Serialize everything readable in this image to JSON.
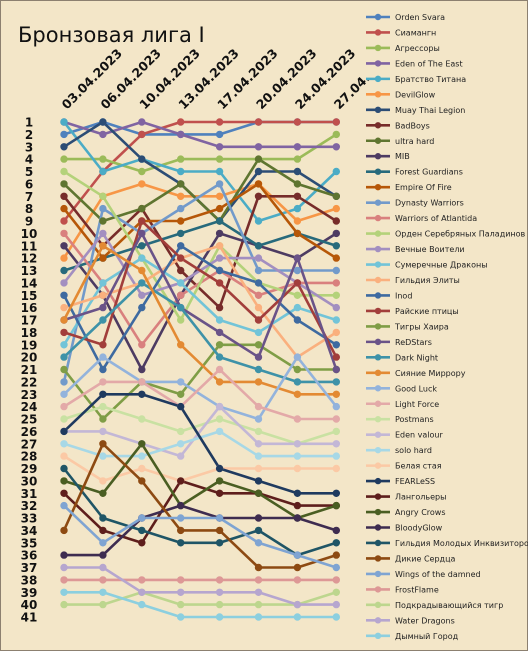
{
  "chart_data": {
    "type": "line",
    "title": "Бронзовая лига I",
    "x": [
      "03.04.2023",
      "06.04.2023",
      "10.04.2023",
      "13.04.2023",
      "17.04.2023",
      "20.04.2023",
      "24.04.2023",
      "27.04."
    ],
    "y_ticks": [
      "1",
      "2",
      "3",
      "4",
      "5",
      "6",
      "7",
      "8",
      "9",
      "10",
      "11",
      "12",
      "13",
      "14",
      "15",
      "16",
      "17",
      "18",
      "19",
      "20",
      "21",
      "22",
      "23",
      "24",
      "25",
      "26",
      "27",
      "28",
      "29",
      "30",
      "31",
      "32",
      "33",
      "34",
      "35",
      "36",
      "37",
      "38",
      "39",
      "40",
      "41"
    ],
    "ylim": [
      1,
      41
    ],
    "y_inverted": true,
    "legend_position": "right",
    "series": [
      {
        "name": "Orden Svara",
        "color": "#4f81bd",
        "values": [
          2,
          1,
          2,
          2,
          2,
          1,
          1,
          1
        ]
      },
      {
        "name": "Сиамангн",
        "color": "#c0504d",
        "values": [
          9,
          5,
          2,
          1,
          1,
          1,
          1,
          1
        ]
      },
      {
        "name": "Агрессоры",
        "color": "#9bbb59",
        "values": [
          4,
          4,
          5,
          4,
          4,
          4,
          4,
          2
        ]
      },
      {
        "name": "Eden of The East",
        "color": "#8064a2",
        "values": [
          1,
          2,
          1,
          2,
          3,
          3,
          3,
          3
        ]
      },
      {
        "name": "Братство Титана",
        "color": "#4bacc6",
        "values": [
          1,
          5,
          4,
          5,
          5,
          9,
          8,
          5
        ]
      },
      {
        "name": "DevilGlow",
        "color": "#f79646",
        "values": [
          12,
          7,
          6,
          7,
          7,
          6,
          9,
          8
        ]
      },
      {
        "name": "Muay Thai Legion",
        "color": "#2c4d75",
        "values": [
          3,
          1,
          4,
          6,
          9,
          5,
          5,
          7
        ]
      },
      {
        "name": "BadBoys",
        "color": "#772c2a",
        "values": [
          7,
          11,
          8,
          13,
          16,
          7,
          7,
          9
        ]
      },
      {
        "name": "ultra hard",
        "color": "#5f7530",
        "values": [
          6,
          9,
          8,
          6,
          9,
          4,
          6,
          7
        ]
      },
      {
        "name": "MIB",
        "color": "#4d3b62",
        "values": [
          11,
          15,
          21,
          15,
          10,
          11,
          12,
          10
        ]
      },
      {
        "name": "Forest Guardians",
        "color": "#276a7c",
        "values": [
          13,
          12,
          11,
          10,
          9,
          11,
          10,
          11
        ]
      },
      {
        "name": "Empire Of Fire",
        "color": "#b65708",
        "values": [
          8,
          12,
          9,
          9,
          8,
          6,
          10,
          12
        ]
      },
      {
        "name": "Dynasty Warriors",
        "color": "#729aca",
        "values": [
          22,
          8,
          10,
          8,
          6,
          13,
          13,
          13
        ]
      },
      {
        "name": "Warriors of Atlantida",
        "color": "#d9807e",
        "values": [
          10,
          14,
          19,
          15,
          13,
          15,
          14,
          14
        ]
      },
      {
        "name": "Орден Серебряных Паладинов",
        "color": "#b4d27a",
        "values": [
          5,
          7,
          12,
          17,
          11,
          14,
          15,
          15
        ]
      },
      {
        "name": "Вечные Воители",
        "color": "#a38fc0",
        "values": [
          14,
          10,
          15,
          14,
          12,
          12,
          14,
          16
        ]
      },
      {
        "name": "Сумеречные Драконы",
        "color": "#72c4d8",
        "values": [
          19,
          14,
          12,
          14,
          17,
          18,
          16,
          17
        ]
      },
      {
        "name": "Гильдия Элиты",
        "color": "#fab07e",
        "values": [
          16,
          15,
          14,
          12,
          11,
          16,
          20,
          18
        ]
      },
      {
        "name": "Inod",
        "color": "#3e6aa0",
        "values": [
          15,
          21,
          16,
          11,
          13,
          14,
          17,
          19
        ]
      },
      {
        "name": "Райские птицы",
        "color": "#a23e3b",
        "values": [
          18,
          19,
          9,
          12,
          14,
          17,
          14,
          20
        ]
      },
      {
        "name": "Тигры Хаира",
        "color": "#7f9d46",
        "values": [
          21,
          25,
          22,
          23,
          19,
          19,
          21,
          21
        ]
      },
      {
        "name": "ReDStars",
        "color": "#6a5388",
        "values": [
          17,
          16,
          10,
          16,
          18,
          20,
          12,
          21
        ]
      },
      {
        "name": "Dark Night",
        "color": "#3e92a8",
        "values": [
          20,
          17,
          14,
          16,
          20,
          21,
          22,
          22
        ]
      },
      {
        "name": "Сияние Миррору",
        "color": "#e38a33",
        "values": [
          17,
          11,
          13,
          19,
          22,
          22,
          23,
          23
        ]
      },
      {
        "name": "Good Luck",
        "color": "#93b3dc",
        "values": [
          23,
          20,
          22,
          22,
          24,
          25,
          20,
          24
        ]
      },
      {
        "name": "Light Force",
        "color": "#e3a9a8",
        "values": [
          24,
          22,
          22,
          24,
          21,
          24,
          25,
          25
        ]
      },
      {
        "name": "Postmans",
        "color": "#c9e1a2",
        "values": [
          25,
          24,
          25,
          26,
          25,
          26,
          27,
          26
        ]
      },
      {
        "name": "Eden valour",
        "color": "#c3b7d6",
        "values": [
          26,
          26,
          27,
          28,
          24,
          27,
          27,
          27
        ]
      },
      {
        "name": "solo hard",
        "color": "#a7d8e6",
        "values": [
          27,
          28,
          28,
          27,
          26,
          28,
          28,
          28
        ]
      },
      {
        "name": "Белая стая",
        "color": "#fbc9a5",
        "values": [
          28,
          30,
          29,
          30,
          29,
          29,
          29,
          29
        ]
      },
      {
        "name": "FEARLeSS",
        "color": "#1f3a5f",
        "values": [
          26,
          23,
          23,
          24,
          29,
          30,
          31,
          31
        ]
      },
      {
        "name": "Лангольеры",
        "color": "#5e1e1c",
        "values": [
          31,
          34,
          35,
          30,
          31,
          31,
          32,
          32
        ]
      },
      {
        "name": "Angry Crows",
        "color": "#4a5e22",
        "values": [
          30,
          31,
          27,
          32,
          30,
          31,
          33,
          32
        ]
      },
      {
        "name": "BloodyGlow",
        "color": "#3e2c50",
        "values": [
          36,
          36,
          33,
          32,
          33,
          33,
          33,
          34
        ]
      },
      {
        "name": "Гильдия Молодых Инквизиторов",
        "color": "#1f5566",
        "values": [
          29,
          33,
          34,
          35,
          35,
          34,
          36,
          35
        ]
      },
      {
        "name": "Дикие Сердца",
        "color": "#8d4a12",
        "values": [
          34,
          27,
          30,
          34,
          34,
          37,
          37,
          36
        ]
      },
      {
        "name": "Wings of the damned",
        "color": "#7fa4d2",
        "values": [
          32,
          35,
          33,
          33,
          33,
          35,
          36,
          37
        ]
      },
      {
        "name": "FrostFlame",
        "color": "#dd9896",
        "values": [
          38,
          38,
          38,
          38,
          38,
          38,
          38,
          38
        ]
      },
      {
        "name": "Подкрадывающийся тигр",
        "color": "#bdd68e",
        "values": [
          40,
          40,
          39,
          40,
          40,
          40,
          40,
          39
        ]
      },
      {
        "name": "Water Dragons",
        "color": "#b6a6cf",
        "values": [
          37,
          37,
          39,
          39,
          39,
          39,
          40,
          40
        ]
      },
      {
        "name": "Дымный Город",
        "color": "#8ccfdf",
        "values": [
          39,
          39,
          40,
          41,
          41,
          41,
          41,
          41
        ]
      }
    ]
  }
}
